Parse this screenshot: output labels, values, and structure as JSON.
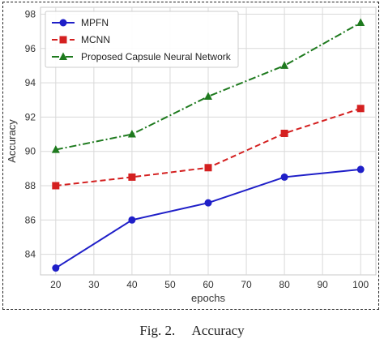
{
  "chart_data": {
    "type": "line",
    "xlabel": "epochs",
    "ylabel": "Accuracy",
    "x": [
      20,
      40,
      60,
      80,
      100
    ],
    "xticks": [
      20,
      30,
      40,
      50,
      60,
      70,
      80,
      90,
      100
    ],
    "yticks": [
      84,
      86,
      88,
      90,
      92,
      94,
      96,
      98
    ],
    "xlim": [
      16,
      104
    ],
    "ylim": [
      82.8,
      98.4
    ],
    "grid": true,
    "legend_position": "top-left",
    "series": [
      {
        "name": "MPFN",
        "values": [
          83.2,
          86.0,
          87.0,
          88.5,
          88.95
        ],
        "color": "#1f1fc8",
        "line_style": "solid",
        "marker": "circle"
      },
      {
        "name": "MCNN",
        "values": [
          88.0,
          88.5,
          89.05,
          91.05,
          92.5
        ],
        "color": "#d42020",
        "line_style": "dashed",
        "marker": "square"
      },
      {
        "name": "Proposed Capsule Neural Network",
        "values": [
          90.1,
          91.0,
          93.2,
          95.0,
          97.5
        ],
        "color": "#1e7a1e",
        "line_style": "dash-dot",
        "marker": "triangle"
      }
    ]
  },
  "caption": "Fig. 2.     Accuracy"
}
